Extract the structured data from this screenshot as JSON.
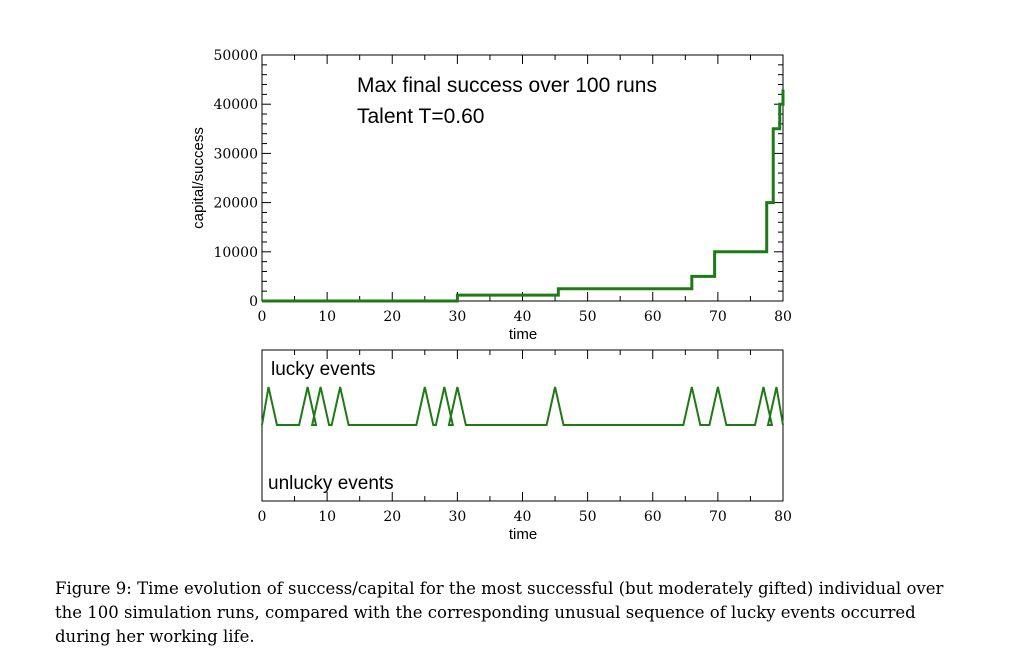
{
  "chart_data": [
    {
      "type": "line",
      "annotations": [
        "Max final success over 100 runs",
        "Talent T=0.60"
      ],
      "xlabel": "time",
      "ylabel": "capital/success",
      "xlim": [
        0,
        80
      ],
      "ylim": [
        0,
        50000
      ],
      "x_ticks": [
        "0",
        "10",
        "20",
        "30",
        "40",
        "50",
        "60",
        "70",
        "80"
      ],
      "y_ticks": [
        "0",
        "10000",
        "20000",
        "30000",
        "40000",
        "50000"
      ],
      "line_color": "#1e7a14",
      "step": true,
      "series": [
        {
          "x": [
            0,
            25.5,
            28,
            30,
            45.5,
            66,
            69.5,
            77.5,
            78.5,
            79.5,
            80
          ],
          "y": [
            0,
            0,
            0,
            1200,
            2500,
            5000,
            10000,
            20000,
            35000,
            40000,
            43000
          ]
        }
      ]
    },
    {
      "type": "line",
      "annotations": [
        "lucky events",
        "unlucky events"
      ],
      "xlabel": "time",
      "xlim": [
        0,
        80
      ],
      "x_ticks": [
        "0",
        "10",
        "20",
        "30",
        "40",
        "50",
        "60",
        "70",
        "80"
      ],
      "line_color": "#1e7a14",
      "baseline": 0,
      "lucky_event_times": [
        1,
        7,
        9,
        12,
        25,
        28,
        30,
        45,
        66,
        70,
        77,
        79
      ],
      "unlucky_event_times": []
    }
  ],
  "caption": "Figure 9: Time evolution of success/capital for the most successful (but moderately gifted) individual over the 100 simulation runs, compared with the corresponding unusual sequence of lucky events occurred during her working life."
}
